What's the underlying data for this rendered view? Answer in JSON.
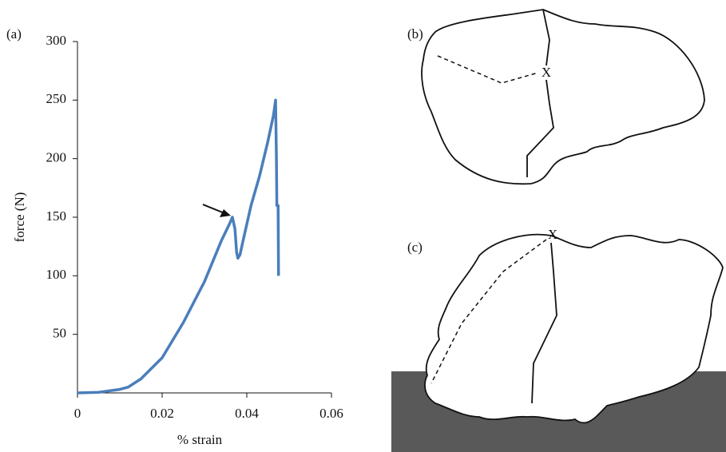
{
  "chart_data": {
    "type": "line",
    "panel_label": "(a)",
    "xlabel": "% strain",
    "ylabel": "force (N)",
    "xlim": [
      0,
      0.06
    ],
    "ylim": [
      0,
      300
    ],
    "xticks": [
      0,
      0.02,
      0.04,
      0.06
    ],
    "yticks": [
      50,
      100,
      150,
      200,
      250,
      300
    ],
    "series": [
      {
        "color": "#4a7ebb",
        "x": [
          0,
          0.005,
          0.01,
          0.012,
          0.015,
          0.02,
          0.025,
          0.03,
          0.034,
          0.036,
          0.0366,
          0.0372,
          0.0376,
          0.0379,
          0.0384,
          0.039,
          0.041,
          0.043,
          0.045,
          0.0463,
          0.0468,
          0.047,
          0.0471,
          0.0474,
          0.0475
        ],
        "values": [
          0,
          0.5,
          3,
          5,
          12,
          30,
          60,
          95,
          130,
          145,
          150,
          140,
          120,
          115,
          118,
          128,
          160,
          185,
          215,
          237,
          250,
          200,
          160,
          160,
          100
        ]
      }
    ]
  },
  "diagrams": {
    "b": {
      "panel_label": "(b)",
      "marker": "X"
    },
    "c": {
      "panel_label": "(c)",
      "marker": "X"
    }
  }
}
